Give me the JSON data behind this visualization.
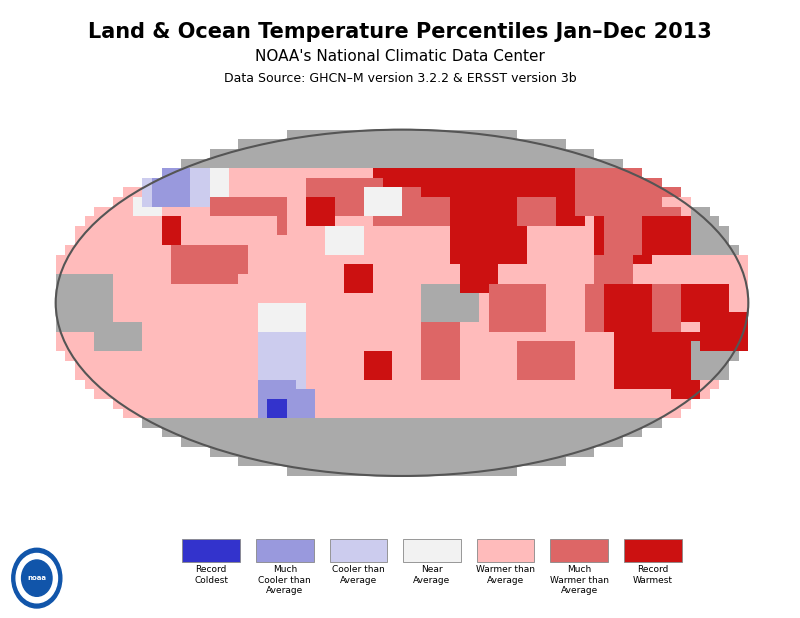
{
  "title": "Land & Ocean Temperature Percentiles Jan–Dec 2013",
  "subtitle": "NOAA's National Climatic Data Center",
  "datasource": "Data Source: GHCN–M version 3.2.2 & ERSST version 3b",
  "title_fontsize": 15,
  "subtitle_fontsize": 11,
  "datasource_fontsize": 9,
  "legend_labels": [
    "Record\nColdest",
    "Much\nCooler than\nAverage",
    "Cooler than\nAverage",
    "Near\nAverage",
    "Warmer than\nAverage",
    "Much\nWarmer than\nAverage",
    "Record\nWarmest"
  ],
  "legend_colors": [
    "#3333CC",
    "#9999DD",
    "#CCCCEE",
    "#F2F2F2",
    "#FFBBBB",
    "#DD6666",
    "#CC1111"
  ],
  "ocean_color": "#BEBEBE",
  "no_data_color": "#AAAAAA",
  "background_color": "#FFFFFF",
  "figsize": [
    8.0,
    6.18
  ],
  "dpi": 100,
  "map_outline_color": "#888888",
  "coastline_color": "#000000",
  "border_color": "#000000"
}
